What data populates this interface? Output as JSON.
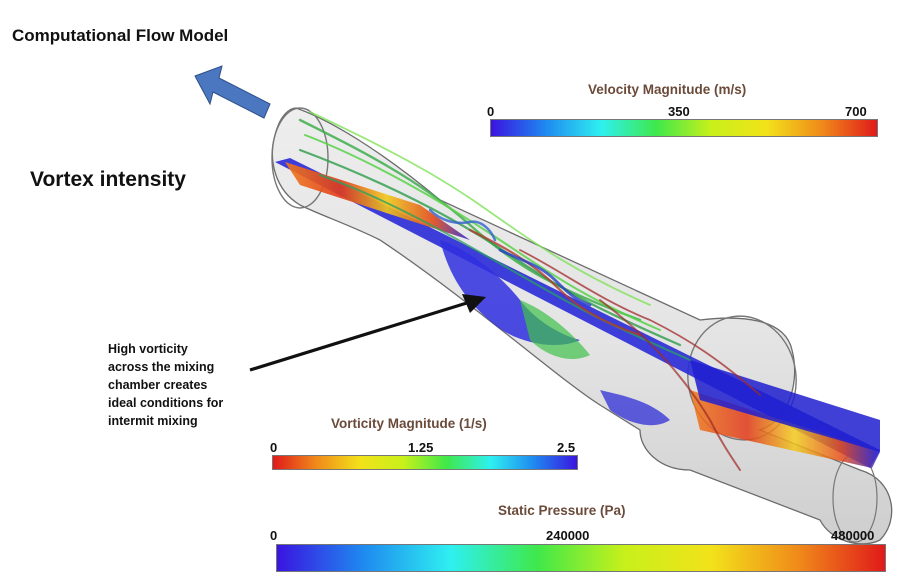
{
  "title": "Computational Flow Model",
  "subtitle": "Vortex intensity",
  "annotation": {
    "lines": [
      "High vorticity",
      "across the mixing",
      "chamber creates",
      "ideal conditions for",
      "intermit mixing"
    ]
  },
  "scales": {
    "velocity": {
      "title": "Velocity Magnitude (m/s)",
      "ticks": [
        "0",
        "350",
        "700"
      ],
      "gradient": [
        "#3a14e0",
        "#1f8af0",
        "#2ef0f0",
        "#3fe84a",
        "#c8f01a",
        "#f2e21a",
        "#f08a1a",
        "#e01a1a"
      ]
    },
    "vorticity": {
      "title": "Vorticity Magnitude (1/s)",
      "ticks": [
        "0",
        "1.25",
        "2.5"
      ],
      "gradient": [
        "#e01a1a",
        "#f08a1a",
        "#f2e21a",
        "#c8f01a",
        "#3fe84a",
        "#2ef0f0",
        "#1f8af0",
        "#3a14e0"
      ]
    },
    "pressure": {
      "title": "Static Pressure (Pa)",
      "ticks": [
        "0",
        "240000",
        "480000"
      ],
      "gradient": [
        "#3a14e0",
        "#1f8af0",
        "#2ef0f0",
        "#3fe84a",
        "#c8f01a",
        "#f2e21a",
        "#f08a1a",
        "#e01a1a"
      ]
    }
  },
  "colors": {
    "arrow_blue": "#4a77c0",
    "scale_title": "#6b4a3a"
  }
}
